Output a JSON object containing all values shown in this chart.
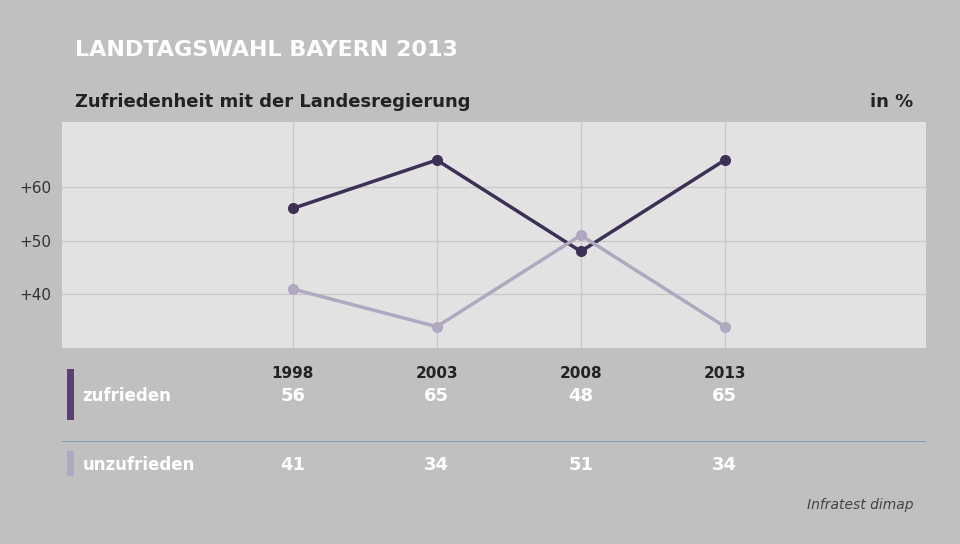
{
  "title_header": "LANDTAGSWAHL BAYERN 2013",
  "subtitle": "Zufriedenheit mit der Landesregierung",
  "unit_label": "in %",
  "source": "Infratest dimap",
  "years": [
    1998,
    2003,
    2008,
    2013
  ],
  "series": [
    {
      "name": "zufrieden",
      "values": [
        56,
        65,
        48,
        65
      ],
      "color": "#3d3055",
      "marker": "o",
      "linewidth": 2.5,
      "swatch_color": "#5a4070"
    },
    {
      "name": "unzufrieden",
      "values": [
        41,
        34,
        51,
        34
      ],
      "color": "#b0a8c0",
      "marker": "o",
      "linewidth": 2.5,
      "swatch_color": "#b0a8c0"
    }
  ],
  "yticks": [
    40,
    50,
    60
  ],
  "ytick_labels": [
    "+40",
    "+50",
    "+60"
  ],
  "ylim": [
    30,
    72
  ],
  "background_outer": "#c0c0c0",
  "background_chart": "#e2e2e2",
  "header_bg": "#1a3a78",
  "header_text_color": "#ffffff",
  "subtitle_bg": "#f5f5f5",
  "subtitle_text_color": "#222222",
  "table_header_bg": "#ffffff",
  "table_row_bg": "#4a7aaa",
  "table_text_color": "#ffffff",
  "table_header_text_color": "#222222",
  "grid_color": "#c8c8c8",
  "ytick_color": "#333333"
}
